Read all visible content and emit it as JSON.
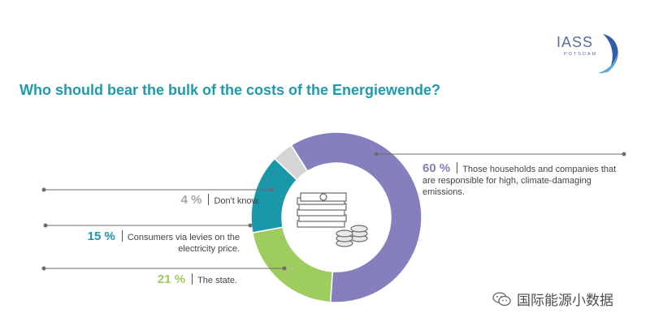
{
  "logo": {
    "name": "IASS",
    "sub": "POTSDAM"
  },
  "title": "Who should bear the bulk of the costs of the Energiewende?",
  "colors": {
    "title": "#1f9bab",
    "emissions": "#8480bd",
    "dont_know": "#d5d5d5",
    "consumers": "#1b97aa",
    "state": "#9fcc5e",
    "line": "#6b6b6b"
  },
  "chart_data": {
    "type": "pie",
    "title": "Who should bear the bulk of the costs of the Energiewende?",
    "slices": [
      {
        "label": "Those households and companies that are responsible for high, climate-damaging emissions.",
        "value": 60,
        "pct_text": "60 %",
        "color": "#8480bd"
      },
      {
        "label": "The state.",
        "value": 21,
        "pct_text": "21 %",
        "color": "#9fcc5e"
      },
      {
        "label": "Consumers via levies on the electricity price.",
        "value": 15,
        "pct_text": "15 %",
        "color": "#1b97aa"
      },
      {
        "label": "Don't know.",
        "value": 4,
        "pct_text": "4 %",
        "color": "#d5d5d5"
      }
    ]
  },
  "center_icon": "money-stack-icon",
  "watermark": "国际能源小数据"
}
